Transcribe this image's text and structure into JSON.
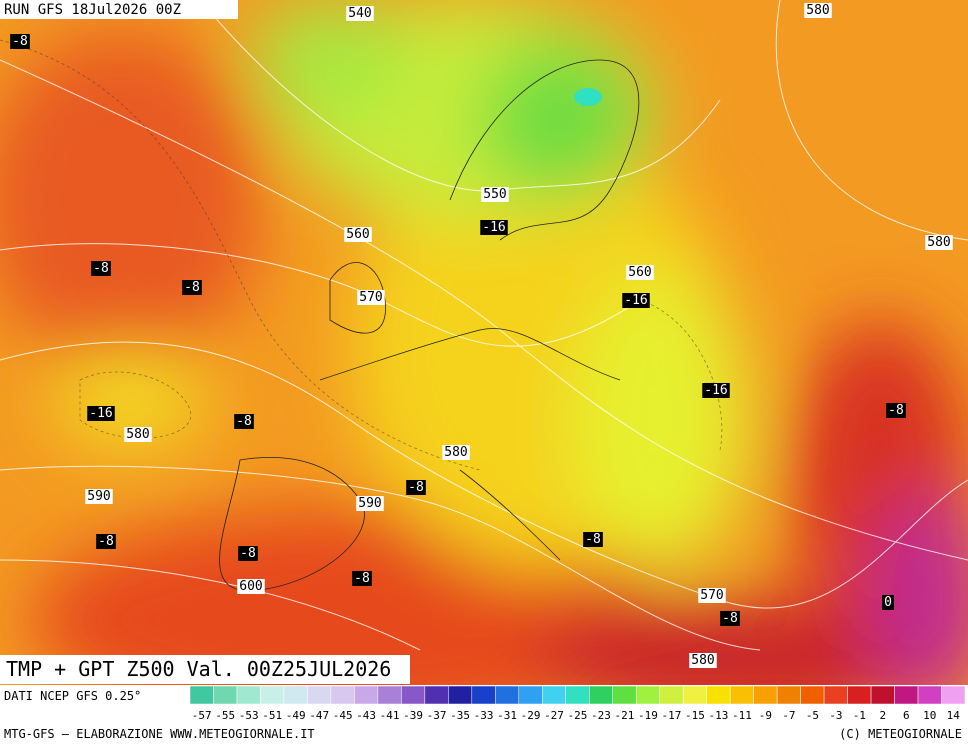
{
  "header": {
    "run": "RUN GFS 18Jul2026 00Z"
  },
  "map": {
    "geopotential_labels": [
      "540",
      "580",
      "550",
      "560",
      "580",
      "560",
      "570",
      "580",
      "580",
      "590",
      "590",
      "600",
      "570",
      "580"
    ],
    "temperature_labels": [
      "-8",
      "-16",
      "-8",
      "-8",
      "-16",
      "-16",
      "-16",
      "-8",
      "-8",
      "-8",
      "-8",
      "-8",
      "-8",
      "-8",
      "0",
      "-8"
    ]
  },
  "title": "TMP + GPT Z500 Val. 00Z25JUL2026",
  "colorbar": {
    "labels": [
      "-57",
      "-55",
      "-53",
      "-51",
      "-49",
      "-47",
      "-45",
      "-43",
      "-41",
      "-39",
      "-37",
      "-35",
      "-33",
      "-31",
      "-29",
      "-27",
      "-25",
      "-23",
      "-21",
      "-19",
      "-17",
      "-15",
      "-13",
      "-11",
      "-9",
      "-7",
      "-5",
      "-3",
      "-1",
      "2",
      "6",
      "10",
      "14"
    ],
    "colors": [
      "#40c8a0",
      "#70d8b0",
      "#a0e8d0",
      "#c8f0e8",
      "#d0e8f0",
      "#d8d8f0",
      "#d8c8f0",
      "#c8a8e8",
      "#a880d8",
      "#8858c8",
      "#5030b0",
      "#2020a0",
      "#1840c8",
      "#2070e0",
      "#30a0f0",
      "#40d0f0",
      "#30e0c0",
      "#30d060",
      "#60e040",
      "#a0f040",
      "#d0f040",
      "#f0f040",
      "#f8e000",
      "#f8c000",
      "#f8a000",
      "#f08000",
      "#f06000",
      "#e84020",
      "#d82020",
      "#c01030",
      "#c01880",
      "#d040c0",
      "#f0a0f0"
    ]
  },
  "footer": {
    "source": "DATI NCEP GFS 0.25°",
    "credit": "MTG-GFS — ELABORAZIONE WWW.METEOGIORNALE.IT",
    "copyright": "(C) METEOGIORNALE"
  }
}
